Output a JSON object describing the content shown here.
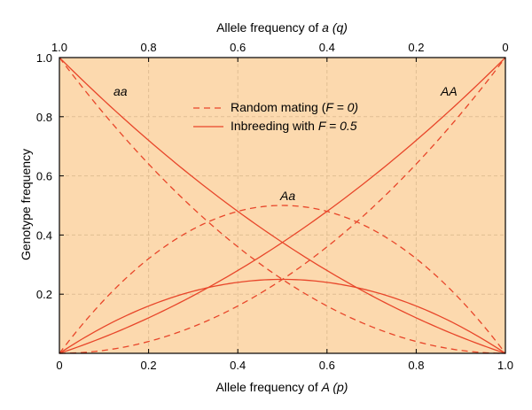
{
  "chart_data": {
    "type": "line",
    "xlabel": "Allele frequency of A (p)",
    "xlabel_parts": {
      "prefix": "Allele frequency of ",
      "var": "A (p)"
    },
    "x2label": "Allele frequency of a (q)",
    "x2label_parts": {
      "prefix": "Allele frequency of ",
      "var": "a (q)"
    },
    "ylabel": "Genotype frequency",
    "xlim": [
      0,
      1
    ],
    "ylim": [
      0,
      1
    ],
    "x_ticks": [
      0,
      0.2,
      0.4,
      0.6,
      0.8,
      1.0
    ],
    "x_tick_labels": [
      "0",
      "0.2",
      "0.4",
      "0.6",
      "0.8",
      "1.0"
    ],
    "x2_ticks": [
      0,
      0.2,
      0.4,
      0.6,
      0.8,
      1.0
    ],
    "x2_tick_labels": [
      "1.0",
      "0.8",
      "0.6",
      "0.4",
      "0.2",
      "0"
    ],
    "y_ticks": [
      0.2,
      0.4,
      0.6,
      0.8,
      1.0
    ],
    "y_tick_labels": [
      "0.2",
      "0.4",
      "0.6",
      "0.8",
      "1.0"
    ],
    "grid": true,
    "legend_position": "top-center",
    "legend": [
      {
        "text": "Random mating (",
        "var": "F = 0)",
        "style": "dashed"
      },
      {
        "text": "Inbreeding with ",
        "var": "F = 0.5",
        "style": "solid"
      }
    ],
    "curve_labels": [
      "aa",
      "AA",
      "Aa"
    ],
    "series": [
      {
        "genotype": "AA",
        "F": 0,
        "style": "dashed",
        "x": [
          0,
          0.1,
          0.2,
          0.3,
          0.4,
          0.5,
          0.6,
          0.7,
          0.8,
          0.9,
          1.0
        ],
        "y": [
          0,
          0.01,
          0.04,
          0.09,
          0.16,
          0.25,
          0.36,
          0.49,
          0.64,
          0.81,
          1.0
        ]
      },
      {
        "genotype": "aa",
        "F": 0,
        "style": "dashed",
        "x": [
          0,
          0.1,
          0.2,
          0.3,
          0.4,
          0.5,
          0.6,
          0.7,
          0.8,
          0.9,
          1.0
        ],
        "y": [
          1.0,
          0.81,
          0.64,
          0.49,
          0.36,
          0.25,
          0.16,
          0.09,
          0.04,
          0.01,
          0
        ]
      },
      {
        "genotype": "Aa",
        "F": 0,
        "style": "dashed",
        "x": [
          0,
          0.1,
          0.2,
          0.3,
          0.4,
          0.5,
          0.6,
          0.7,
          0.8,
          0.9,
          1.0
        ],
        "y": [
          0,
          0.18,
          0.32,
          0.42,
          0.48,
          0.5,
          0.48,
          0.42,
          0.32,
          0.18,
          0
        ]
      },
      {
        "genotype": "AA",
        "F": 0.5,
        "style": "solid",
        "x": [
          0,
          0.1,
          0.2,
          0.3,
          0.4,
          0.5,
          0.6,
          0.7,
          0.8,
          0.9,
          1.0
        ],
        "y": [
          0,
          0.055,
          0.12,
          0.195,
          0.28,
          0.375,
          0.48,
          0.595,
          0.72,
          0.855,
          1.0
        ]
      },
      {
        "genotype": "aa",
        "F": 0.5,
        "style": "solid",
        "x": [
          0,
          0.1,
          0.2,
          0.3,
          0.4,
          0.5,
          0.6,
          0.7,
          0.8,
          0.9,
          1.0
        ],
        "y": [
          1.0,
          0.855,
          0.72,
          0.595,
          0.48,
          0.375,
          0.28,
          0.195,
          0.12,
          0.055,
          0
        ]
      },
      {
        "genotype": "Aa",
        "F": 0.5,
        "style": "solid",
        "x": [
          0,
          0.1,
          0.2,
          0.3,
          0.4,
          0.5,
          0.6,
          0.7,
          0.8,
          0.9,
          1.0
        ],
        "y": [
          0,
          0.09,
          0.16,
          0.21,
          0.24,
          0.25,
          0.24,
          0.21,
          0.16,
          0.09,
          0
        ]
      }
    ],
    "colors": {
      "plot_background": "#FCD9AE",
      "line": "#E8462A",
      "grid": "#E0BE93"
    }
  }
}
